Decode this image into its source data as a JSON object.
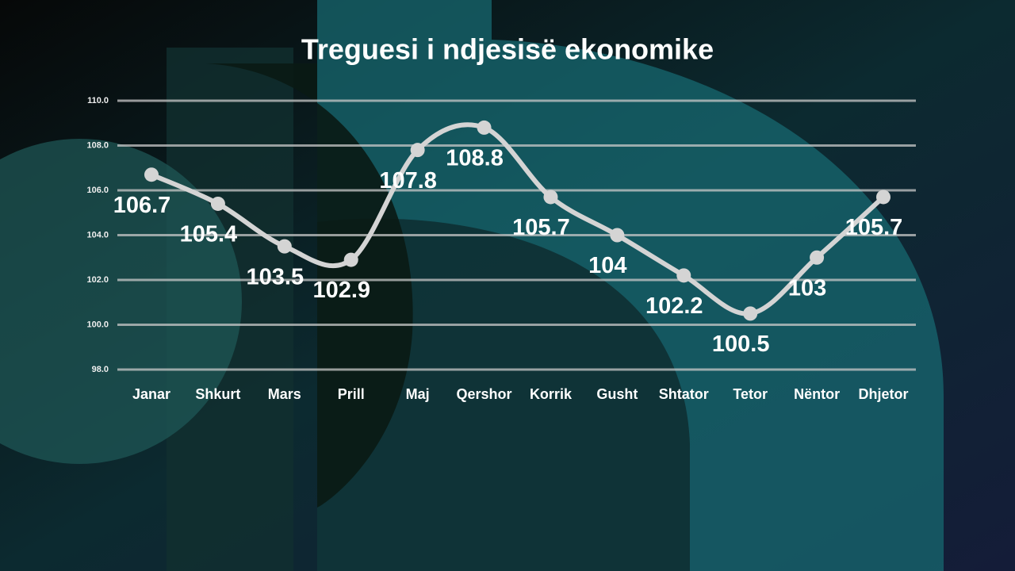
{
  "chart_data": {
    "type": "line",
    "title": "Treguesi i ndjesisë ekonomike",
    "categories": [
      "Janar",
      "Shkurt",
      "Mars",
      "Prill",
      "Maj",
      "Qershor",
      "Korrik",
      "Gusht",
      "Shtator",
      "Tetor",
      "Nëntor",
      "Dhjetor"
    ],
    "values": [
      106.7,
      105.4,
      103.5,
      102.9,
      107.8,
      108.8,
      105.7,
      104,
      102.2,
      100.5,
      103,
      105.7
    ],
    "color": "#d4d4d4",
    "ylim": [
      98,
      110
    ],
    "yticks": [
      {
        "value": 98,
        "label": "98.0"
      },
      {
        "value": 100,
        "label": "100.0"
      },
      {
        "value": 102,
        "label": "102.0"
      },
      {
        "value": 104,
        "label": "104.0"
      },
      {
        "value": 106,
        "label": "106.0"
      },
      {
        "value": 108,
        "label": "108.0"
      },
      {
        "value": 110,
        "label": "110.0"
      }
    ],
    "grid": true
  }
}
